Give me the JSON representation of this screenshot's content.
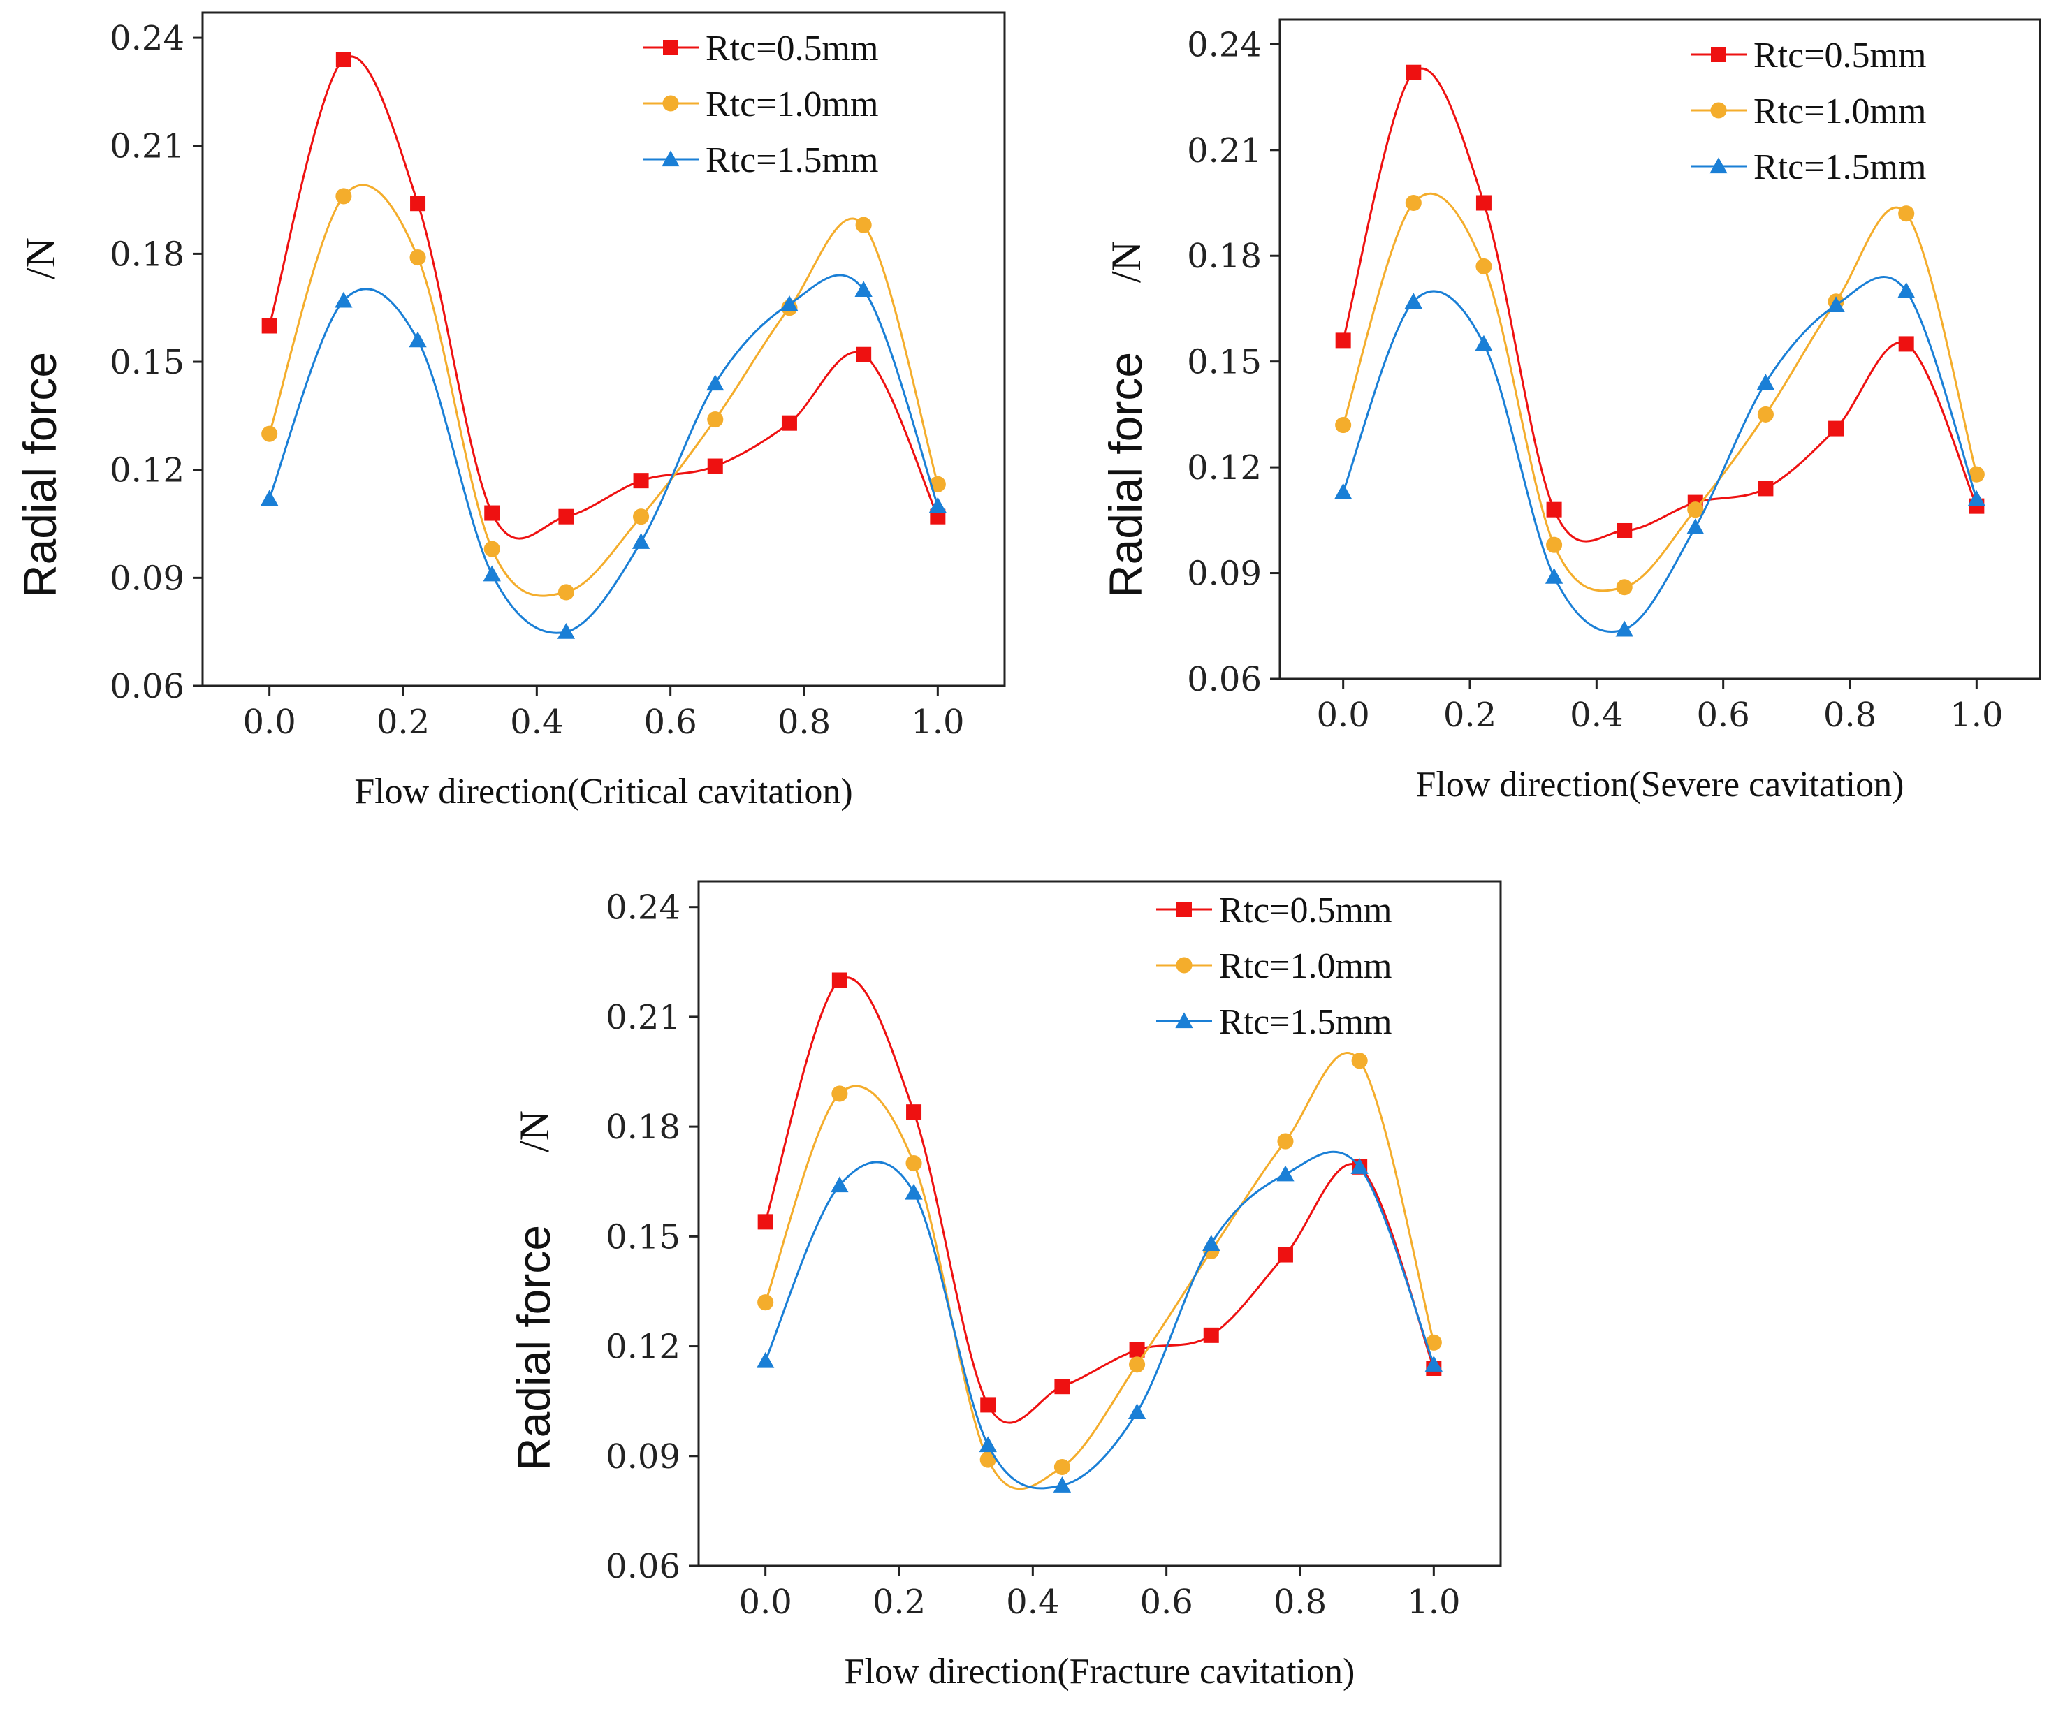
{
  "colors": {
    "series": [
      "#ee1111",
      "#f4ad2c",
      "#1a7fd6"
    ],
    "axis": "#222222"
  },
  "chart_data": [
    {
      "type": "line",
      "xlabel": "Flow direction(Critical cavitation)",
      "ylabel": "Radial force",
      "yunit": "/N",
      "xlim": [
        -0.1,
        1.1
      ],
      "ylim": [
        0.06,
        0.247
      ],
      "xticks": [
        "0.0",
        "0.2",
        "0.4",
        "0.6",
        "0.8",
        "1.0"
      ],
      "yticks": [
        "0.06",
        "0.09",
        "0.12",
        "0.15",
        "0.18",
        "0.21",
        "0.24"
      ],
      "legend_position": "top-right",
      "x": [
        0.0,
        0.111,
        0.222,
        0.333,
        0.444,
        0.556,
        0.667,
        0.778,
        0.889,
        1.0
      ],
      "series": [
        {
          "name": "Rtc=0.5mm",
          "marker": "square",
          "values": [
            0.16,
            0.234,
            0.194,
            0.108,
            0.107,
            0.117,
            0.121,
            0.133,
            0.152,
            0.107
          ]
        },
        {
          "name": "Rtc=1.0mm",
          "marker": "circle",
          "values": [
            0.13,
            0.196,
            0.179,
            0.098,
            0.086,
            0.107,
            0.134,
            0.165,
            0.188,
            0.116
          ]
        },
        {
          "name": "Rtc=1.5mm",
          "marker": "triangle",
          "values": [
            0.112,
            0.167,
            0.156,
            0.091,
            0.075,
            0.1,
            0.144,
            0.166,
            0.17,
            0.11
          ]
        }
      ]
    },
    {
      "type": "line",
      "xlabel": "Flow direction(Severe cavitation)",
      "ylabel": "Radial force",
      "yunit": "/N",
      "xlim": [
        -0.1,
        1.1
      ],
      "ylim": [
        0.06,
        0.247
      ],
      "xticks": [
        "0.0",
        "0.2",
        "0.4",
        "0.6",
        "0.8",
        "1.0"
      ],
      "yticks": [
        "0.06",
        "0.09",
        "0.12",
        "0.15",
        "0.18",
        "0.21",
        "0.24"
      ],
      "legend_position": "top-right",
      "x": [
        0.0,
        0.111,
        0.222,
        0.333,
        0.444,
        0.556,
        0.667,
        0.778,
        0.889,
        1.0
      ],
      "series": [
        {
          "name": "Rtc=0.5mm",
          "marker": "square",
          "values": [
            0.156,
            0.232,
            0.195,
            0.108,
            0.102,
            0.11,
            0.114,
            0.131,
            0.155,
            0.109
          ]
        },
        {
          "name": "Rtc=1.0mm",
          "marker": "circle",
          "values": [
            0.132,
            0.195,
            0.177,
            0.098,
            0.086,
            0.108,
            0.135,
            0.167,
            0.192,
            0.118
          ]
        },
        {
          "name": "Rtc=1.5mm",
          "marker": "triangle",
          "values": [
            0.113,
            0.167,
            0.155,
            0.089,
            0.074,
            0.103,
            0.144,
            0.166,
            0.17,
            0.111
          ]
        }
      ]
    },
    {
      "type": "line",
      "xlabel": "Flow direction(Fracture cavitation)",
      "ylabel": "Radial force",
      "yunit": "/N",
      "xlim": [
        -0.1,
        1.1
      ],
      "ylim": [
        0.06,
        0.247
      ],
      "xticks": [
        "0.0",
        "0.2",
        "0.4",
        "0.6",
        "0.8",
        "1.0"
      ],
      "yticks": [
        "0.06",
        "0.09",
        "0.12",
        "0.15",
        "0.18",
        "0.21",
        "0.24"
      ],
      "legend_position": "top-right",
      "x": [
        0.0,
        0.111,
        0.222,
        0.333,
        0.444,
        0.556,
        0.667,
        0.778,
        0.889,
        1.0
      ],
      "series": [
        {
          "name": "Rtc=0.5mm",
          "marker": "square",
          "values": [
            0.154,
            0.22,
            0.184,
            0.104,
            0.109,
            0.119,
            0.123,
            0.145,
            0.169,
            0.114
          ]
        },
        {
          "name": "Rtc=1.0mm",
          "marker": "circle",
          "values": [
            0.132,
            0.189,
            0.17,
            0.089,
            0.087,
            0.115,
            0.146,
            0.176,
            0.198,
            0.121
          ]
        },
        {
          "name": "Rtc=1.5mm",
          "marker": "triangle",
          "values": [
            0.116,
            0.164,
            0.162,
            0.093,
            0.082,
            0.102,
            0.148,
            0.167,
            0.169,
            0.115
          ]
        }
      ]
    }
  ]
}
